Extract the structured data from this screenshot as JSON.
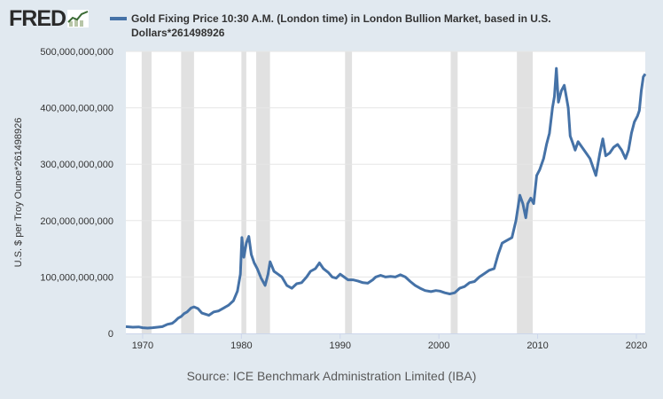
{
  "header": {
    "logo_text": "FRED",
    "logo_icon": "chart-line-icon",
    "series_label": "Gold Fixing Price 10:30 A.M. (London time) in London Bullion Market, based in U.S. Dollars*261498926"
  },
  "source_text": "Source: ICE Benchmark Administration Limited (IBA)",
  "colors": {
    "line": "#4572a7",
    "recession": "#e1e1e1",
    "background": "#e1e9f0",
    "plot_background": "#ffffff"
  },
  "chart_data": {
    "type": "line",
    "title": "",
    "xlabel": "",
    "ylabel": "U.S. $ per Troy Ounce*261498926",
    "xlim": [
      1968.3,
      2020.9
    ],
    "ylim": [
      0,
      500000000000
    ],
    "yticks": [
      0,
      100000000000,
      200000000000,
      300000000000,
      400000000000,
      500000000000
    ],
    "ytick_labels": [
      "0",
      "100,000,000,000",
      "200,000,000,000",
      "300,000,000,000",
      "400,000,000,000",
      "500,000,000,000"
    ],
    "xticks": [
      1970,
      1980,
      1990,
      2000,
      2010,
      2020
    ],
    "xtick_labels": [
      "1970",
      "1980",
      "1990",
      "2000",
      "2010",
      "2020"
    ],
    "grid": "horizontal",
    "recessions": [
      [
        1969.9,
        1970.9
      ],
      [
        1973.9,
        1975.2
      ],
      [
        1980.0,
        1980.5
      ],
      [
        1981.5,
        1982.9
      ],
      [
        1990.5,
        1991.2
      ],
      [
        2001.2,
        2001.9
      ],
      [
        2007.9,
        2009.5
      ]
    ],
    "series": [
      {
        "name": "Gold Fixing Price 10:30 A.M. (London time) in London Bullion Market, based in U.S. Dollars*261498926",
        "x": [
          1968.3,
          1969.0,
          1969.6,
          1970.0,
          1970.5,
          1971.0,
          1971.5,
          1972.0,
          1972.5,
          1973.0,
          1973.3,
          1973.6,
          1973.9,
          1974.2,
          1974.5,
          1974.9,
          1975.2,
          1975.6,
          1976.0,
          1976.7,
          1977.2,
          1977.7,
          1978.2,
          1978.7,
          1979.2,
          1979.6,
          1979.9,
          1980.05,
          1980.25,
          1980.5,
          1980.75,
          1981.0,
          1981.3,
          1981.6,
          1982.0,
          1982.4,
          1982.7,
          1982.9,
          1983.3,
          1983.7,
          1984.1,
          1984.6,
          1985.1,
          1985.6,
          1986.1,
          1986.6,
          1987.0,
          1987.5,
          1987.9,
          1988.3,
          1988.8,
          1989.2,
          1989.6,
          1990.0,
          1990.4,
          1990.8,
          1991.3,
          1991.8,
          1992.3,
          1992.8,
          1993.3,
          1993.6,
          1994.1,
          1994.6,
          1995.1,
          1995.6,
          1996.1,
          1996.6,
          1997.1,
          1997.6,
          1998.1,
          1998.6,
          1999.2,
          1999.7,
          2000.1,
          2000.6,
          2001.1,
          2001.6,
          2002.1,
          2002.6,
          2003.1,
          2003.6,
          2004.1,
          2004.6,
          2005.1,
          2005.6,
          2006.0,
          2006.4,
          2006.9,
          2007.4,
          2007.8,
          2008.2,
          2008.5,
          2008.8,
          2009.0,
          2009.3,
          2009.6,
          2009.9,
          2010.2,
          2010.6,
          2010.9,
          2011.2,
          2011.5,
          2011.7,
          2011.9,
          2012.1,
          2012.4,
          2012.7,
          2012.9,
          2013.1,
          2013.3,
          2013.5,
          2013.8,
          2014.1,
          2014.5,
          2014.9,
          2015.3,
          2015.7,
          2015.9,
          2016.3,
          2016.6,
          2016.9,
          2017.3,
          2017.7,
          2018.1,
          2018.5,
          2018.9,
          2019.2,
          2019.5,
          2019.8,
          2020.1,
          2020.3,
          2020.5,
          2020.7,
          2020.9
        ],
        "values": [
          12000000000,
          11000000000,
          11500000000,
          10000000000,
          9500000000,
          10000000000,
          11000000000,
          12000000000,
          16000000000,
          18000000000,
          22000000000,
          27000000000,
          30000000000,
          35000000000,
          38000000000,
          45000000000,
          47000000000,
          44000000000,
          36000000000,
          32000000000,
          38000000000,
          40000000000,
          45000000000,
          50000000000,
          58000000000,
          75000000000,
          105000000000,
          170000000000,
          135000000000,
          160000000000,
          172000000000,
          140000000000,
          125000000000,
          115000000000,
          98000000000,
          85000000000,
          105000000000,
          127000000000,
          110000000000,
          105000000000,
          100000000000,
          85000000000,
          80000000000,
          88000000000,
          90000000000,
          100000000000,
          110000000000,
          115000000000,
          125000000000,
          115000000000,
          108000000000,
          100000000000,
          98000000000,
          105000000000,
          100000000000,
          95000000000,
          95000000000,
          93000000000,
          90000000000,
          89000000000,
          95000000000,
          100000000000,
          103000000000,
          100000000000,
          101000000000,
          100000000000,
          104000000000,
          100000000000,
          92000000000,
          85000000000,
          80000000000,
          76000000000,
          74000000000,
          76000000000,
          75000000000,
          72000000000,
          70000000000,
          72000000000,
          80000000000,
          83000000000,
          90000000000,
          92000000000,
          100000000000,
          106000000000,
          112000000000,
          115000000000,
          140000000000,
          160000000000,
          165000000000,
          170000000000,
          200000000000,
          245000000000,
          230000000000,
          205000000000,
          230000000000,
          240000000000,
          230000000000,
          280000000000,
          290000000000,
          310000000000,
          335000000000,
          355000000000,
          400000000000,
          420000000000,
          470000000000,
          410000000000,
          430000000000,
          440000000000,
          420000000000,
          400000000000,
          350000000000,
          340000000000,
          325000000000,
          340000000000,
          330000000000,
          320000000000,
          310000000000,
          290000000000,
          280000000000,
          320000000000,
          345000000000,
          315000000000,
          320000000000,
          330000000000,
          335000000000,
          325000000000,
          310000000000,
          325000000000,
          355000000000,
          375000000000,
          385000000000,
          395000000000,
          430000000000,
          455000000000,
          460000000000
        ]
      }
    ]
  }
}
